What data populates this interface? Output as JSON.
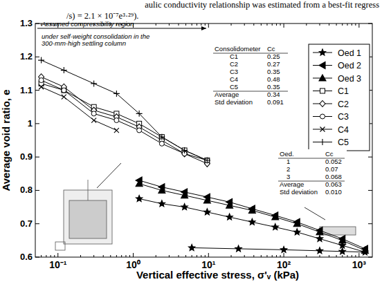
{
  "chart_data": {
    "type": "line",
    "x_label": "Vertical effective stress, σ'ᵥ (kPa)",
    "y_label": "Average void ratio, e",
    "log": "x",
    "grid": false,
    "legend": "upper right",
    "xlim": [
      0.05,
      1500
    ],
    "ylim": [
      0.6,
      1.3
    ],
    "xticks": [
      {
        "value": 0.1,
        "label": "10⁻¹"
      },
      {
        "value": 1,
        "label": "10⁰"
      },
      {
        "value": 10,
        "label": "10¹"
      },
      {
        "value": 100,
        "label": "10²"
      },
      {
        "value": 1000,
        "label": "10³"
      }
    ],
    "yticks": [
      0.6,
      0.7,
      0.8,
      0.9,
      1,
      1.1,
      1.2,
      1.3
    ],
    "annotations": {
      "header_lines": [
        "aulic conductivity relationship was estimated from a best-fit regress",
        "/s) = 2.1 × 10⁻⁷e³·²⁹)."
      ],
      "region_lines": [
        "Assumed compressibility region",
        "under self-weight consolidation in the",
        "300-mm-high settling column"
      ],
      "tables": [
        {
          "header": [
            "Consolidometer",
            "Cc"
          ],
          "rows": [
            [
              "C1",
              "0.25"
            ],
            [
              "C2",
              "0.27"
            ],
            [
              "C3",
              "0.35"
            ],
            [
              "C4",
              "0.48"
            ],
            [
              "C5",
              "0.35"
            ]
          ],
          "summary": [
            [
              "Average",
              "0.34"
            ],
            [
              "Std deviation",
              "0.091"
            ]
          ]
        },
        {
          "header": [
            "Oed.",
            "Cc"
          ],
          "rows": [
            [
              "1",
              "0.052"
            ],
            [
              "2",
              "0.07"
            ],
            [
              "3",
              "0.068"
            ]
          ],
          "summary": [
            [
              "Average",
              "0.063"
            ],
            [
              "Std deviation",
              "0.010"
            ]
          ]
        }
      ]
    },
    "series": [
      {
        "name": "Oed 1",
        "color": "#000000",
        "marker": "star",
        "line_style": "solid",
        "x": [
          1.2,
          2.4,
          4.8,
          9.6,
          19,
          38,
          77,
          150,
          300,
          600,
          1200,
          600,
          300,
          100,
          25,
          6
        ],
        "values": [
          0.775,
          0.76,
          0.75,
          0.735,
          0.72,
          0.705,
          0.69,
          0.675,
          0.655,
          0.635,
          0.615,
          0.617,
          0.619,
          0.622,
          0.625,
          0.628
        ]
      },
      {
        "name": "Oed 2",
        "color": "#000000",
        "marker": "triangle-left",
        "line_style": "solid",
        "x": [
          1.2,
          2.4,
          4.8,
          9.6,
          19,
          38,
          77,
          150,
          300,
          600,
          1200
        ],
        "values": [
          0.83,
          0.81,
          0.795,
          0.78,
          0.765,
          0.745,
          0.725,
          0.705,
          0.68,
          0.655,
          0.625
        ]
      },
      {
        "name": "Oed 3",
        "color": "#000000",
        "marker": "triangle-up",
        "line_style": "solid",
        "x": [
          1.2,
          2.4,
          4.8,
          9.6,
          19,
          38,
          77,
          150,
          300,
          600,
          1200
        ],
        "values": [
          0.82,
          0.8,
          0.785,
          0.77,
          0.755,
          0.74,
          0.72,
          0.7,
          0.675,
          0.65,
          0.62
        ]
      },
      {
        "name": "C1",
        "color": "#000000",
        "marker": "square",
        "line_style": "solid",
        "x": [
          0.06,
          0.12,
          0.3,
          0.6,
          1.2,
          2.4,
          4.8,
          9.6
        ],
        "values": [
          1.12,
          1.1,
          1.05,
          1.03,
          1.0,
          0.96,
          0.92,
          0.89
        ]
      },
      {
        "name": "C2",
        "color": "#000000",
        "marker": "diamond",
        "line_style": "solid",
        "x": [
          0.06,
          0.12,
          0.3,
          0.6,
          1.2,
          2.4,
          4.8,
          9.6
        ],
        "values": [
          1.14,
          1.11,
          1.04,
          1.02,
          0.99,
          0.95,
          0.91,
          0.88
        ]
      },
      {
        "name": "C3",
        "color": "#000000",
        "marker": "circle",
        "line_style": "solid",
        "x": [
          0.06,
          0.12,
          0.3,
          0.6,
          1.2,
          2.4,
          4.8,
          9.6
        ],
        "values": [
          1.13,
          1.1,
          1.03,
          1.01,
          0.98,
          0.94,
          0.91,
          0.89
        ]
      },
      {
        "name": "C4",
        "color": "#000000",
        "marker": "x",
        "line_style": "solid",
        "x": [
          0.06,
          0.12,
          0.3,
          0.6
        ],
        "values": [
          1.11,
          1.08,
          1.01,
          0.98
        ]
      },
      {
        "name": "C5",
        "color": "#000000",
        "marker": "plus",
        "line_style": "solid",
        "x": [
          0.06,
          0.12,
          0.3,
          0.6,
          1.2,
          2.4,
          4.8,
          9.6
        ],
        "values": [
          1.19,
          1.16,
          1.12,
          1.09,
          1.03,
          0.96,
          0.92,
          0.89
        ]
      }
    ]
  }
}
